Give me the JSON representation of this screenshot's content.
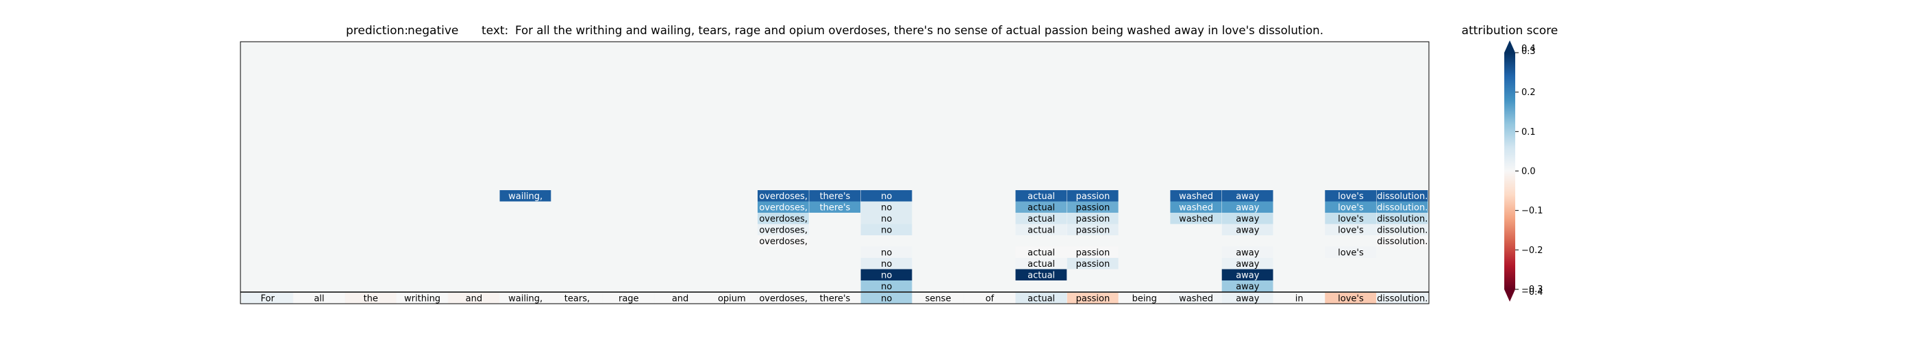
{
  "chart_data": {
    "type": "heatmap",
    "title_prediction_label": "prediction:",
    "title_prediction_value": "negative",
    "title_text_label": "text:",
    "title_text_value": "For all the writhing and wailing, tears, rage and opium overdoses, there's no sense of actual passion being washed away in love's dissolution.",
    "tokens": [
      "For",
      "all",
      "the",
      "writhing",
      "and",
      "wailing,",
      "tears,",
      "rage",
      "and",
      "opium",
      "overdoses,",
      "there's",
      "no",
      "sense",
      "of",
      "actual",
      "passion",
      "being",
      "washed",
      "away",
      "in",
      "love's",
      "dissolution."
    ],
    "base_row_scores": [
      0.02,
      0.0,
      -0.01,
      0.0,
      -0.01,
      0.0,
      0.0,
      0.0,
      0.0,
      0.0,
      0.0,
      0.0,
      0.1,
      0.0,
      0.0,
      0.04,
      -0.07,
      0.0,
      0.01,
      0.02,
      0.0,
      -0.08,
      0.02
    ],
    "layers": [
      {
        "cells": [
          {
            "t": 5,
            "s": 0.25
          },
          {
            "t": 10,
            "s": 0.25
          },
          {
            "t": 11,
            "s": 0.25
          },
          {
            "t": 12,
            "s": 0.25
          },
          {
            "t": 15,
            "s": 0.25
          },
          {
            "t": 16,
            "s": 0.25
          },
          {
            "t": 18,
            "s": 0.25
          },
          {
            "t": 19,
            "s": 0.25
          },
          {
            "t": 21,
            "s": 0.25
          },
          {
            "t": 22,
            "s": 0.25
          }
        ]
      },
      {
        "cells": [
          {
            "t": 10,
            "s": 0.17
          },
          {
            "t": 11,
            "s": 0.17
          },
          {
            "t": 12,
            "s": 0.04
          },
          {
            "t": 15,
            "s": 0.15
          },
          {
            "t": 16,
            "s": 0.15
          },
          {
            "t": 18,
            "s": 0.17
          },
          {
            "t": 19,
            "s": 0.17
          },
          {
            "t": 21,
            "s": 0.17
          },
          {
            "t": 22,
            "s": 0.17
          }
        ]
      },
      {
        "cells": [
          {
            "t": 10,
            "s": 0.07
          },
          {
            "t": 12,
            "s": 0.04
          },
          {
            "t": 15,
            "s": 0.05
          },
          {
            "t": 16,
            "s": 0.05
          },
          {
            "t": 18,
            "s": 0.07
          },
          {
            "t": 19,
            "s": 0.07
          },
          {
            "t": 21,
            "s": 0.07
          },
          {
            "t": 22,
            "s": 0.07
          }
        ]
      },
      {
        "cells": [
          {
            "t": 10,
            "s": 0.02
          },
          {
            "t": 12,
            "s": 0.05
          },
          {
            "t": 15,
            "s": 0.02
          },
          {
            "t": 16,
            "s": 0.03
          },
          {
            "t": 19,
            "s": 0.03
          },
          {
            "t": 21,
            "s": 0.02
          },
          {
            "t": 22,
            "s": 0.02
          }
        ]
      },
      {
        "cells": [
          {
            "t": 10,
            "s": 0.0
          },
          {
            "t": 22,
            "s": 0.0
          }
        ]
      },
      {
        "cells": [
          {
            "t": 12,
            "s": 0.01
          },
          {
            "t": 15,
            "s": 0.0
          },
          {
            "t": 16,
            "s": 0.0
          },
          {
            "t": 19,
            "s": 0.01
          },
          {
            "t": 21,
            "s": 0.01
          }
        ]
      },
      {
        "cells": [
          {
            "t": 12,
            "s": 0.03
          },
          {
            "t": 15,
            "s": 0.01
          },
          {
            "t": 16,
            "s": 0.04
          },
          {
            "t": 19,
            "s": 0.02
          }
        ]
      },
      {
        "cells": [
          {
            "t": 12,
            "s": 0.38
          },
          {
            "t": 15,
            "s": 0.38
          },
          {
            "t": 19,
            "s": 0.38
          }
        ]
      },
      {
        "cells": [
          {
            "t": 12,
            "s": 0.11
          },
          {
            "t": 19,
            "s": 0.11
          }
        ]
      }
    ],
    "colorbar": {
      "label": "attribution score",
      "ticks": [
        "0.3",
        "0.2",
        "0.1",
        "0.0",
        "−0.1",
        "−0.2",
        "−0.3"
      ],
      "end_labels_top": [
        "0.4",
        "0.3"
      ],
      "end_labels_bottom": [
        "−0.3",
        "−0.4"
      ],
      "vmin": -0.3,
      "vmax": 0.3,
      "colormap": "RdBu"
    },
    "grid": false,
    "legend": "colorbar-right"
  }
}
